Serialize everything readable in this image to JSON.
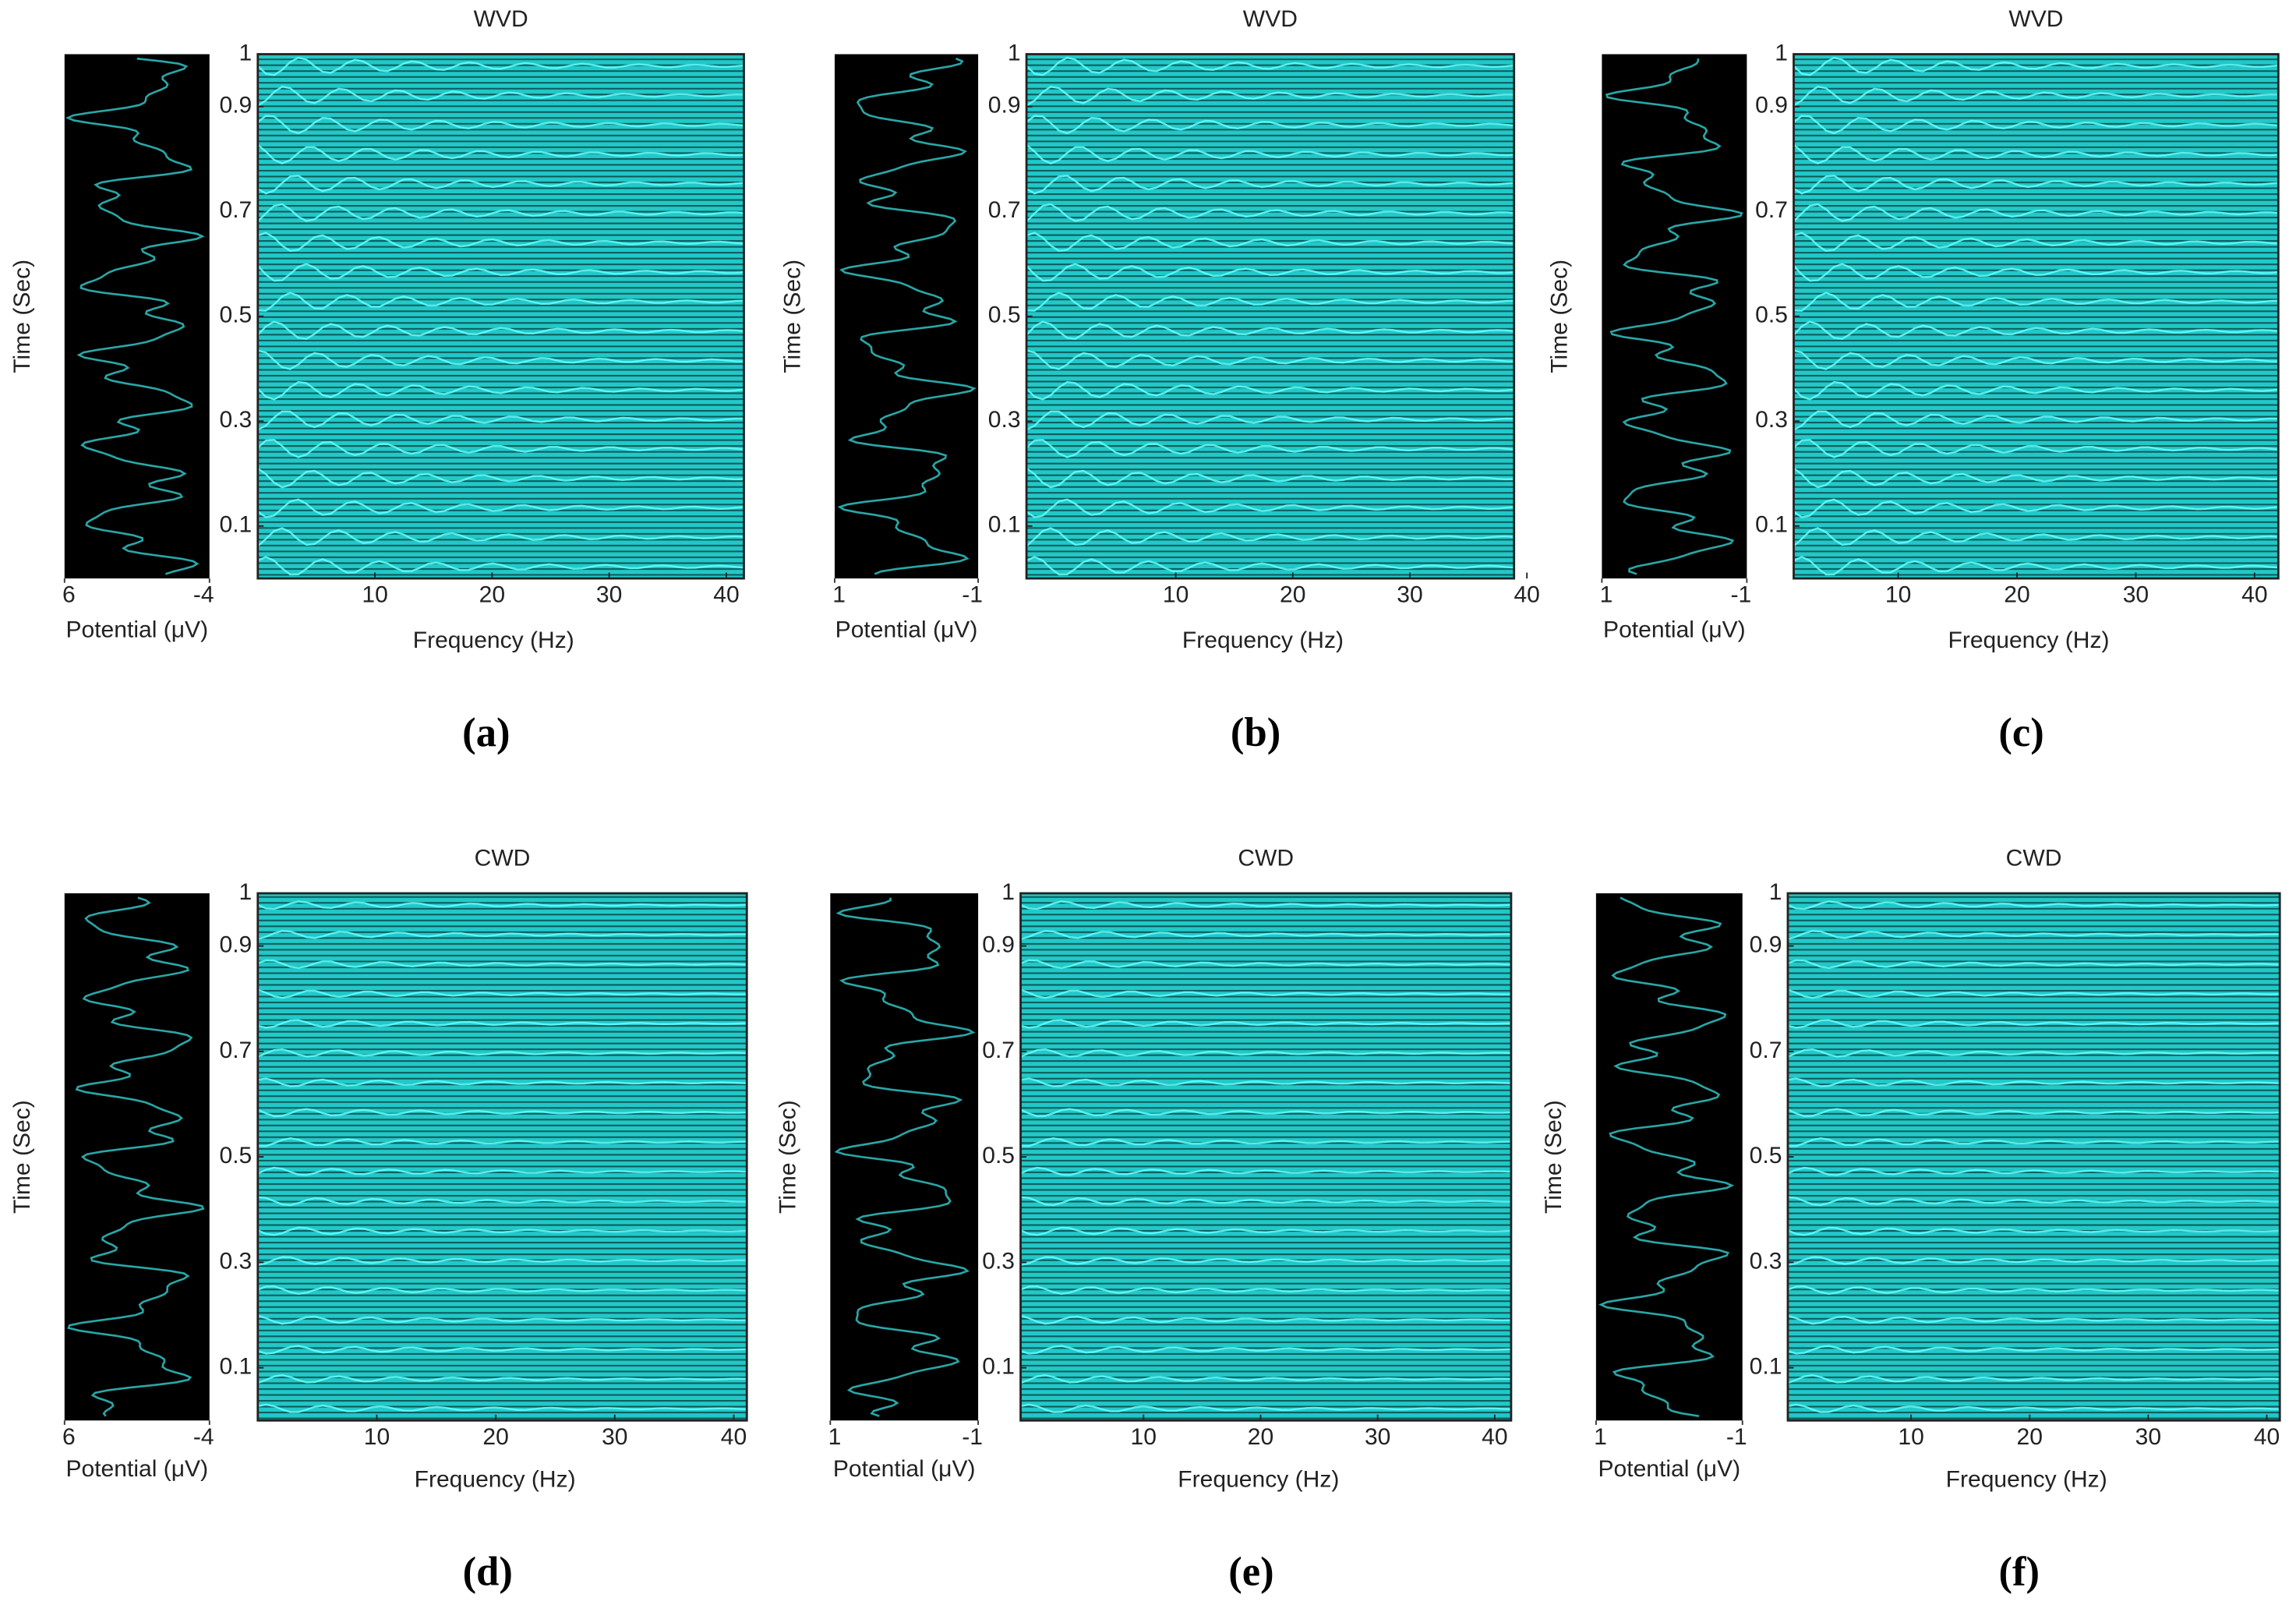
{
  "chart_data": [
    {
      "type": "tfd",
      "title": "WVD",
      "panel_label": "(a)",
      "xlabel": "Frequency (Hz)",
      "ylabel": "Time (Sec)",
      "xlim": [
        0,
        41.5
      ],
      "xticks": [
        10,
        20,
        30,
        40
      ],
      "ylim": [
        0,
        1
      ],
      "yticks": [
        0.1,
        0.3,
        0.5,
        0.7,
        0.9,
        1
      ],
      "signal_xlabel": "Potential (μV)",
      "signal_xlim": [
        6,
        -4
      ],
      "signal_xticks": [
        6,
        -4
      ],
      "color": "#22c8c8"
    },
    {
      "type": "tfd",
      "title": "WVD",
      "panel_label": "(b)",
      "xlabel": "Frequency (Hz)",
      "ylabel": "Time (Sec)",
      "xlim": [
        -2.75,
        38.9
      ],
      "xticks": [
        10,
        20,
        30,
        40
      ],
      "ylim": [
        0,
        1
      ],
      "yticks": [
        0.1,
        0.3,
        0.5,
        0.7,
        0.9,
        1
      ],
      "signal_xlabel": "Potential (μV)",
      "signal_xlim": [
        1,
        -1
      ],
      "signal_xticks": [
        1,
        -1
      ],
      "color": "#22c8c8"
    },
    {
      "type": "tfd",
      "title": "WVD",
      "panel_label": "(c)",
      "xlabel": "Frequency (Hz)",
      "ylabel": "Time (Sec)",
      "xlim": [
        1.2,
        42
      ],
      "xticks": [
        10,
        20,
        30,
        40
      ],
      "ylim": [
        0,
        1
      ],
      "yticks": [
        0.1,
        0.3,
        0.5,
        0.7,
        0.9,
        1
      ],
      "signal_xlabel": "Potential (μV)",
      "signal_xlim": [
        1,
        -1
      ],
      "signal_xticks": [
        1,
        -1
      ],
      "color": "#22c8c8"
    },
    {
      "type": "tfd",
      "title": "CWD",
      "panel_label": "(d)",
      "xlabel": "Frequency (Hz)",
      "ylabel": "Time (Sec)",
      "xlim": [
        0,
        41.1
      ],
      "xticks": [
        10,
        20,
        30,
        40
      ],
      "ylim": [
        0,
        1
      ],
      "yticks": [
        0.1,
        0.3,
        0.5,
        0.7,
        0.9,
        1
      ],
      "signal_xlabel": "Potential (μV)",
      "signal_xlim": [
        6,
        -4
      ],
      "signal_xticks": [
        6,
        -4
      ],
      "color": "#22c8c8"
    },
    {
      "type": "tfd",
      "title": "CWD",
      "panel_label": "(e)",
      "xlabel": "Frequency (Hz)",
      "ylabel": "Time (Sec)",
      "xlim": [
        -0.5,
        41.4
      ],
      "xticks": [
        10,
        20,
        30,
        40
      ],
      "ylim": [
        0,
        1
      ],
      "yticks": [
        0.1,
        0.3,
        0.5,
        0.7,
        0.9,
        1
      ],
      "signal_xlabel": "Potential (μV)",
      "signal_xlim": [
        1,
        -1
      ],
      "signal_xticks": [
        1,
        -1
      ],
      "color": "#22c8c8"
    },
    {
      "type": "tfd",
      "title": "CWD",
      "panel_label": "(f)",
      "xlabel": "Frequency (Hz)",
      "ylabel": "Time (Sec)",
      "xlim": [
        -0.4,
        41.1
      ],
      "xticks": [
        10,
        20,
        30,
        40
      ],
      "ylim": [
        0,
        1
      ],
      "yticks": [
        0.1,
        0.3,
        0.5,
        0.7,
        0.9,
        1
      ],
      "signal_xlabel": "Potential (μV)",
      "signal_xlim": [
        1,
        -1
      ],
      "signal_xticks": [
        1,
        -1
      ],
      "color": "#22c8c8"
    }
  ]
}
